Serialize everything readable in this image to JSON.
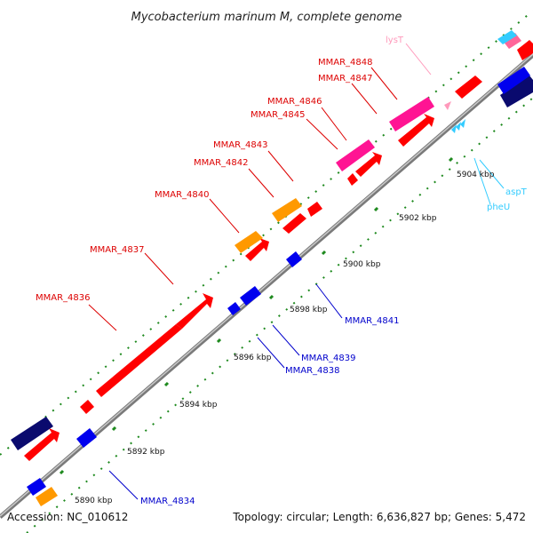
{
  "title": "Mycobacterium marinum M, complete genome",
  "footer": {
    "accession": "Accession: NC_010612",
    "summary": "Topology: circular; Length: 6,636,827 bp; Genes: 5,472"
  },
  "colors": {
    "backbone": "#8c8c8c",
    "tick_dot": "#1f8a1f",
    "forward_cds": "#ff0000",
    "reverse_cds": "#0000ee",
    "forward_label": "#dd0000",
    "reverse_label": "#0000cc",
    "orange_feature": "#ff9900",
    "magenta_feature": "#ff1493",
    "navy_feature": "#0a0a6e",
    "trna_forward": "#ff99bb",
    "trna_reverse": "#33ccff"
  },
  "ticks": [
    "5890 kbp",
    "5892 kbp",
    "5894 kbp",
    "5896 kbp",
    "5898 kbp",
    "5900 kbp",
    "5902 kbp",
    "5904 kbp"
  ],
  "forward_labels": [
    "MMAR_4836",
    "MMAR_4837",
    "MMAR_4840",
    "MMAR_4842",
    "MMAR_4843",
    "MMAR_4845",
    "MMAR_4846",
    "MMAR_4847",
    "MMAR_4848"
  ],
  "reverse_labels": [
    "MMAR_4834",
    "MMAR_4838",
    "MMAR_4839",
    "MMAR_4841"
  ],
  "trna_forward_labels": [
    "lysT"
  ],
  "trna_reverse_labels": [
    "pheU",
    "aspT"
  ]
}
